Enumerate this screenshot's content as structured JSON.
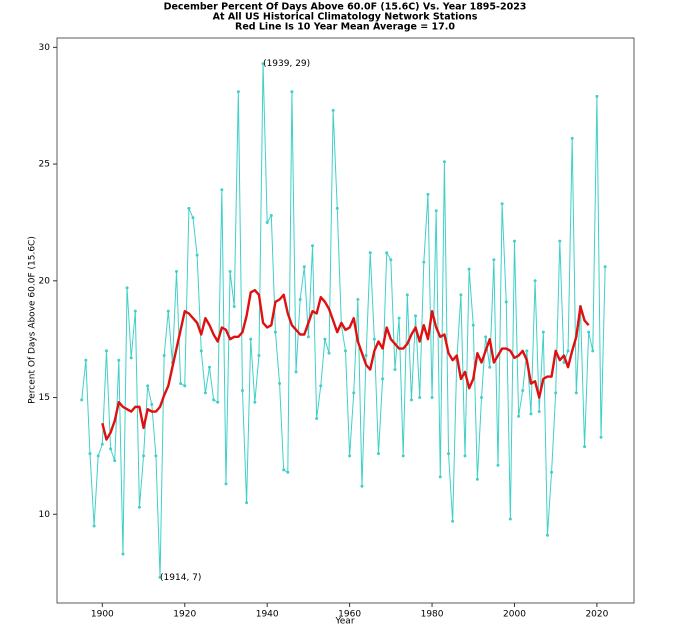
{
  "chart_data": {
    "type": "line",
    "title": [
      "December Percent Of Days Above 60.0F (15.6C) Vs. Year 1895-2023",
      "At All US Historical Climatology Network Stations",
      "Red Line Is 10 Year Mean  Average = 17.0"
    ],
    "xlabel": "Year",
    "ylabel": "Percent Of Days Above 60.0F (15.6C)",
    "x": [
      1895,
      1896,
      1897,
      1898,
      1899,
      1900,
      1901,
      1902,
      1903,
      1904,
      1905,
      1906,
      1907,
      1908,
      1909,
      1910,
      1911,
      1912,
      1913,
      1914,
      1915,
      1916,
      1917,
      1918,
      1919,
      1920,
      1921,
      1922,
      1923,
      1924,
      1925,
      1926,
      1927,
      1928,
      1929,
      1930,
      1931,
      1932,
      1933,
      1934,
      1935,
      1936,
      1937,
      1938,
      1939,
      1940,
      1941,
      1942,
      1943,
      1944,
      1945,
      1946,
      1947,
      1948,
      1949,
      1950,
      1951,
      1952,
      1953,
      1954,
      1955,
      1956,
      1957,
      1958,
      1959,
      1960,
      1961,
      1962,
      1963,
      1964,
      1965,
      1966,
      1967,
      1968,
      1969,
      1970,
      1971,
      1972,
      1973,
      1974,
      1975,
      1976,
      1977,
      1978,
      1979,
      1980,
      1981,
      1982,
      1983,
      1984,
      1985,
      1986,
      1987,
      1988,
      1989,
      1990,
      1991,
      1992,
      1993,
      1994,
      1995,
      1996,
      1997,
      1998,
      1999,
      2000,
      2001,
      2002,
      2003,
      2004,
      2005,
      2006,
      2007,
      2008,
      2009,
      2010,
      2011,
      2012,
      2013,
      2014,
      2015,
      2016,
      2017,
      2018,
      2019,
      2020,
      2021,
      2022
    ],
    "series": [
      {
        "color": "#40d0c8",
        "marker": true,
        "width": 1,
        "values": [
          14.9,
          16.6,
          12.6,
          9.5,
          12.5,
          13.0,
          17.0,
          12.8,
          12.3,
          16.6,
          8.3,
          19.7,
          16.7,
          18.7,
          10.3,
          12.5,
          15.5,
          14.7,
          12.5,
          7.3,
          16.8,
          18.7,
          16.5,
          20.4,
          15.6,
          15.5,
          23.1,
          22.7,
          21.1,
          17.0,
          15.2,
          16.3,
          14.9,
          14.8,
          23.9,
          11.3,
          20.4,
          18.9,
          28.1,
          15.3,
          10.5,
          17.5,
          14.8,
          16.8,
          29.3,
          22.5,
          22.8,
          17.8,
          15.6,
          11.9,
          11.8,
          28.1,
          16.1,
          19.2,
          20.6,
          17.6,
          21.5,
          14.1,
          15.5,
          17.5,
          16.9,
          27.3,
          23.1,
          18.1,
          17.0,
          12.5,
          15.2,
          19.2,
          11.2,
          16.8,
          21.2,
          17.5,
          12.6,
          15.8,
          21.2,
          20.9,
          16.2,
          18.4,
          12.5,
          19.4,
          14.9,
          18.5,
          15.0,
          20.8,
          23.7,
          15.0,
          23.0,
          11.6,
          25.1,
          12.6,
          9.7,
          16.6,
          19.4,
          12.5,
          20.5,
          18.1,
          11.5,
          15.0,
          17.6,
          16.3,
          20.9,
          12.1,
          23.3,
          19.1,
          9.8,
          21.7,
          14.2,
          15.3,
          17.0,
          14.3,
          20.0,
          14.4,
          17.8,
          9.1,
          11.8,
          15.2,
          21.7,
          16.5,
          17.0,
          26.1,
          15.2,
          18.9,
          12.9,
          17.8,
          17.0,
          27.9,
          13.3,
          20.6
        ]
      },
      {
        "color": "#e01010",
        "marker": false,
        "width": 2.4,
        "values": [
          null,
          null,
          null,
          null,
          null,
          13.9,
          13.2,
          13.5,
          14.0,
          14.8,
          14.6,
          14.5,
          14.4,
          14.6,
          14.6,
          13.7,
          14.5,
          14.4,
          14.4,
          14.6,
          15.1,
          15.5,
          16.3,
          17.1,
          17.9,
          18.7,
          18.6,
          18.4,
          18.2,
          17.7,
          18.4,
          18.1,
          17.7,
          17.4,
          18.0,
          17.9,
          17.5,
          17.6,
          17.6,
          17.8,
          18.5,
          19.5,
          19.6,
          19.4,
          18.2,
          18.0,
          18.1,
          19.1,
          19.2,
          19.4,
          18.6,
          18.1,
          17.9,
          17.7,
          17.7,
          18.2,
          18.7,
          18.6,
          19.3,
          19.1,
          18.8,
          18.3,
          17.8,
          18.2,
          17.9,
          18.0,
          18.4,
          17.4,
          16.9,
          16.4,
          16.2,
          17.0,
          17.4,
          17.1,
          18.0,
          17.5,
          17.3,
          17.1,
          17.1,
          17.3,
          17.7,
          18.0,
          17.4,
          18.1,
          17.5,
          18.7,
          18.0,
          17.6,
          17.7,
          16.9,
          16.6,
          16.8,
          15.8,
          16.1,
          15.4,
          15.8,
          16.9,
          16.5,
          17.0,
          17.5,
          16.5,
          16.8,
          17.1,
          17.1,
          17.0,
          16.7,
          16.8,
          17.0,
          16.6,
          15.6,
          15.7,
          15.0,
          15.8,
          15.9,
          15.9,
          17.0,
          16.6,
          16.8,
          16.3,
          17.0,
          17.6,
          18.9,
          18.3,
          18.1,
          null,
          null,
          null,
          null
        ]
      }
    ],
    "annotations": [
      {
        "text": "(1939, 29)",
        "x": 1939,
        "y": 29
      },
      {
        "text": "(1914, 7)",
        "x": 1914,
        "y": 7
      }
    ],
    "xlim": [
      1889,
      2029
    ],
    "ylim": [
      6.2,
      30.4
    ],
    "xticks": [
      1900,
      1920,
      1940,
      1960,
      1980,
      2000,
      2020
    ],
    "yticks": [
      10,
      15,
      20,
      25,
      30
    ],
    "grid": false
  }
}
